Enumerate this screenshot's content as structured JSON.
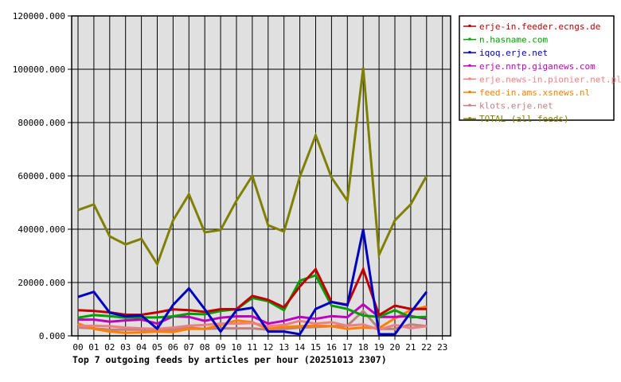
{
  "chart_data": {
    "type": "line",
    "title": "Top 7 outgoing feeds by articles per hour (20251013 2307)",
    "xlabel": "",
    "ylabel": "",
    "ylim": [
      0,
      120000
    ],
    "yticks": [
      "0.000",
      "20000.000",
      "40000.000",
      "60000.000",
      "80000.000",
      "100000.000",
      "120000.000"
    ],
    "ytick_values": [
      0,
      20000,
      40000,
      60000,
      80000,
      100000,
      120000
    ],
    "x": [
      "00",
      "01",
      "02",
      "03",
      "04",
      "05",
      "06",
      "07",
      "08",
      "09",
      "10",
      "11",
      "12",
      "13",
      "14",
      "15",
      "16",
      "17",
      "18",
      "19",
      "20",
      "21",
      "22",
      "23"
    ],
    "grid": true,
    "legend_position": "right",
    "series": [
      {
        "name": "erje-in.feeder.ecngs.de",
        "color": "#c00000",
        "values": [
          9600,
          9300,
          8800,
          7900,
          7900,
          8800,
          9900,
          9600,
          9000,
          10000,
          10000,
          15000,
          13500,
          10700,
          18500,
          25000,
          12700,
          11700,
          25000,
          7800,
          11300,
          10100,
          10100
        ]
      },
      {
        "name": "n.hasname.com",
        "color": "#00a000",
        "values": [
          6800,
          7800,
          7400,
          6800,
          6900,
          6900,
          7300,
          8300,
          8100,
          9300,
          10000,
          14200,
          13000,
          9600,
          20700,
          22700,
          11300,
          10100,
          7600,
          7100,
          9600,
          7000,
          7100
        ]
      },
      {
        "name": "iqoq.erje.net",
        "color": "#0000c0",
        "values": [
          14600,
          16500,
          8700,
          7300,
          7600,
          2700,
          11600,
          17800,
          10000,
          1600,
          9600,
          10500,
          1600,
          1600,
          600,
          10100,
          12700,
          11500,
          39900,
          600,
          600,
          8800,
          16500
        ]
      },
      {
        "name": "erje.nntp.giganews.com",
        "color": "#c000c0",
        "values": [
          6100,
          6100,
          5300,
          5800,
          6100,
          4600,
          7300,
          7100,
          5600,
          6800,
          7300,
          7300,
          4600,
          5600,
          7100,
          6400,
          7400,
          7000,
          11800,
          7100,
          7100,
          7400,
          6400
        ]
      },
      {
        "name": "erje.news-in.pionier.net.pl",
        "color": "#f08080",
        "values": [
          3600,
          3800,
          3600,
          3100,
          2800,
          2600,
          3100,
          3800,
          4100,
          4600,
          4600,
          4800,
          3600,
          4100,
          5600,
          4600,
          5100,
          3800,
          4300,
          2300,
          4100,
          2900,
          3600
        ]
      },
      {
        "name": "feed-in.ams.xsnews.nl",
        "color": "#ff8000",
        "values": [
          4600,
          2600,
          1600,
          1100,
          1300,
          1600,
          1400,
          2600,
          2600,
          4100,
          5800,
          5100,
          2600,
          3300,
          3600,
          3800,
          3600,
          2600,
          3100,
          2900,
          6600,
          9600,
          11000
        ]
      },
      {
        "name": "klots.erje.net",
        "color": "#c08080",
        "values": [
          3100,
          2800,
          2300,
          2300,
          2300,
          1900,
          2300,
          3100,
          2600,
          2800,
          2800,
          2800,
          2300,
          2600,
          3100,
          3300,
          3600,
          3800,
          9300,
          2600,
          2600,
          4300,
          3600
        ]
      },
      {
        "name": "TOTAL (all feeds)",
        "color": "#808000",
        "values": [
          47200,
          49300,
          37300,
          34300,
          36400,
          26900,
          43300,
          53100,
          38800,
          39700,
          50700,
          60000,
          41500,
          39100,
          59700,
          75200,
          59400,
          50700,
          100600,
          30400,
          43300,
          49300,
          60000
        ]
      }
    ]
  }
}
